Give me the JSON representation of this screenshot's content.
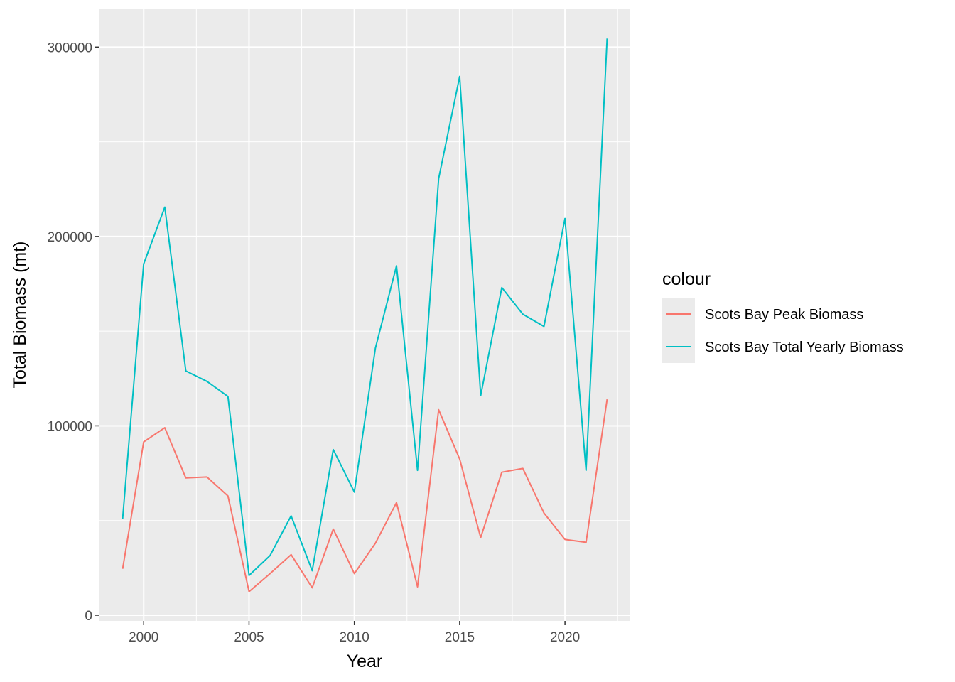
{
  "chart_data": {
    "type": "line",
    "xlabel": "Year",
    "ylabel": "Total Biomass (mt)",
    "xlim": [
      1997.9,
      2023.1
    ],
    "ylim": [
      -3000,
      320000
    ],
    "x_ticks": [
      2000,
      2005,
      2010,
      2015,
      2020
    ],
    "x_tick_labels": [
      "2000",
      "2005",
      "2010",
      "2015",
      "2020"
    ],
    "y_ticks": [
      0,
      100000,
      200000,
      300000
    ],
    "y_tick_labels": [
      "0",
      "100000",
      "200000",
      "300000"
    ],
    "grid": true,
    "legend": {
      "title": "colour",
      "placement": "right"
    },
    "x": [
      1999,
      2000,
      2001,
      2002,
      2003,
      2004,
      2005,
      2006,
      2007,
      2008,
      2009,
      2010,
      2011,
      2012,
      2013,
      2014,
      2015,
      2016,
      2017,
      2018,
      2019,
      2020,
      2021,
      2022
    ],
    "series": [
      {
        "name": "Scots Bay Peak Biomass",
        "color": "#F8766D",
        "values": [
          24500,
          91500,
          99000,
          72500,
          73000,
          63000,
          12500,
          22000,
          32000,
          14500,
          45500,
          22000,
          38000,
          59500,
          15000,
          108500,
          82500,
          41000,
          75500,
          77500,
          54000,
          40000,
          38500,
          114000
        ]
      },
      {
        "name": "Scots Bay Total Yearly Biomass",
        "color": "#00BFC4",
        "values": [
          51000,
          185500,
          215500,
          129000,
          123500,
          115500,
          21000,
          31500,
          52500,
          23500,
          87500,
          65000,
          141000,
          184500,
          76500,
          230500,
          284500,
          116000,
          173000,
          159000,
          152500,
          209500,
          76500,
          304500
        ]
      }
    ]
  }
}
